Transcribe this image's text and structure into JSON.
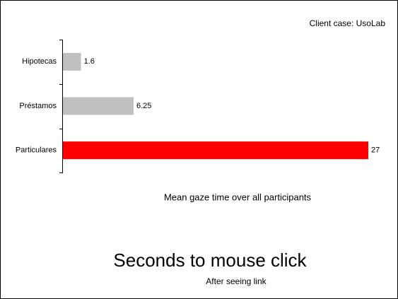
{
  "chart_data": {
    "type": "bar",
    "orientation": "horizontal",
    "annotation": "Client case: UsoLab",
    "subtitle": "Mean gaze time over all participants",
    "title": "Seconds to mouse click",
    "caption": "After seeing link",
    "categories": [
      "Hipotecas",
      "Préstamos",
      "Particulares"
    ],
    "values": [
      1.6,
      6.25,
      27
    ],
    "colors": [
      "#c0c0c0",
      "#c0c0c0",
      "#ff0000"
    ]
  }
}
